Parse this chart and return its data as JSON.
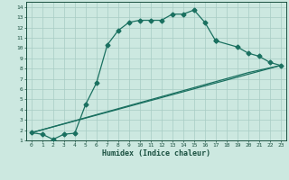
{
  "xlabel": "Humidex (Indice chaleur)",
  "bg_color": "#cce8e0",
  "line_color": "#1a7060",
  "xlim": [
    -0.5,
    23.5
  ],
  "ylim": [
    1,
    14.5
  ],
  "xticks": [
    0,
    1,
    2,
    3,
    4,
    5,
    6,
    7,
    8,
    9,
    10,
    11,
    12,
    13,
    14,
    15,
    16,
    17,
    18,
    19,
    20,
    21,
    22,
    23
  ],
  "yticks": [
    1,
    2,
    3,
    4,
    5,
    6,
    7,
    8,
    9,
    10,
    11,
    12,
    13,
    14
  ],
  "grid_color": "#a8ccc4",
  "font_color": "#1a5040",
  "markersize": 2.5,
  "series1_x": [
    0,
    1,
    2,
    3,
    4,
    5,
    6,
    7,
    8,
    9,
    10,
    11,
    12,
    13,
    14,
    15,
    16,
    17
  ],
  "series1_y": [
    1.75,
    1.6,
    1.1,
    1.6,
    1.7,
    4.5,
    6.6,
    10.3,
    11.7,
    12.5,
    12.7,
    12.7,
    12.7,
    13.3,
    13.3,
    13.7,
    12.5,
    10.7
  ],
  "series2_x": [
    17,
    19,
    20,
    21,
    22,
    23
  ],
  "series2_y": [
    10.7,
    10.1,
    9.5,
    9.2,
    8.6,
    8.3
  ],
  "line3_x": [
    0,
    23
  ],
  "line3_y": [
    1.75,
    8.3
  ],
  "line4_x": [
    0,
    20,
    23
  ],
  "line4_y": [
    1.75,
    7.6,
    8.3
  ]
}
